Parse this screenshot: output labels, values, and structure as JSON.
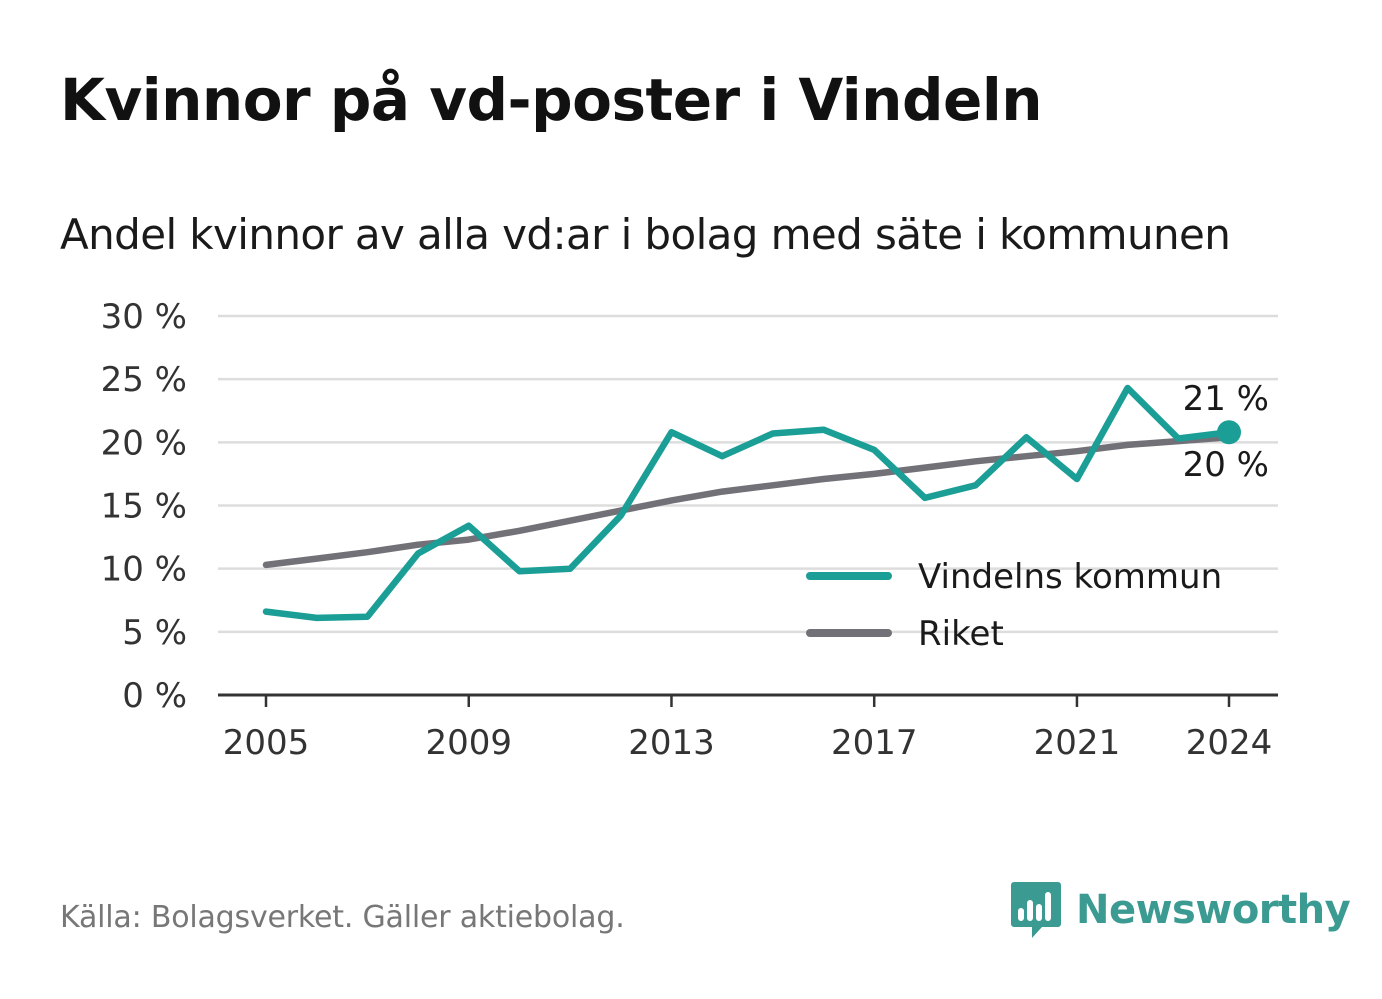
{
  "title": "Kvinnor på vd-poster i Vindeln",
  "subtitle": "Andel kvinnor av alla vd:ar i bolag med säte i kommunen",
  "source": "Källa: Bolagsverket. Gäller aktiebolag.",
  "brand": {
    "name": "Newsworthy",
    "icon": "bar-chart-speech-bubble-icon",
    "color": "#3b9b92"
  },
  "chart_data": {
    "type": "line",
    "x": [
      2005,
      2006,
      2007,
      2008,
      2009,
      2010,
      2011,
      2012,
      2013,
      2014,
      2015,
      2016,
      2017,
      2018,
      2019,
      2020,
      2021,
      2022,
      2023,
      2024
    ],
    "x_ticks": [
      2005,
      2009,
      2013,
      2017,
      2021,
      2024
    ],
    "x_tick_labels": [
      "2005",
      "2009",
      "2013",
      "2017",
      "2021",
      "2024"
    ],
    "ylim": [
      0,
      30
    ],
    "y_ticks": [
      0,
      5,
      10,
      15,
      20,
      25,
      30
    ],
    "y_tick_labels": [
      "0 %",
      "5 %",
      "10 %",
      "15 %",
      "20 %",
      "25 %",
      "30 %"
    ],
    "grid": true,
    "legend_position": "bottom-right",
    "series": [
      {
        "name": "Vindelns kommun",
        "color": "#1a9e96",
        "values": [
          6.6,
          6.1,
          6.2,
          11.2,
          13.4,
          9.8,
          10.0,
          14.2,
          20.8,
          18.9,
          20.7,
          21.0,
          19.4,
          15.6,
          16.6,
          20.4,
          17.1,
          24.3,
          20.3,
          20.8
        ],
        "end_label": "21 %",
        "end_marker": true
      },
      {
        "name": "Riket",
        "color": "#727178",
        "values": [
          10.3,
          10.8,
          11.3,
          11.9,
          12.3,
          13.0,
          13.8,
          14.6,
          15.4,
          16.1,
          16.6,
          17.1,
          17.5,
          18.0,
          18.5,
          18.9,
          19.3,
          19.8,
          20.1,
          20.4
        ],
        "end_label": "20 %"
      }
    ]
  }
}
